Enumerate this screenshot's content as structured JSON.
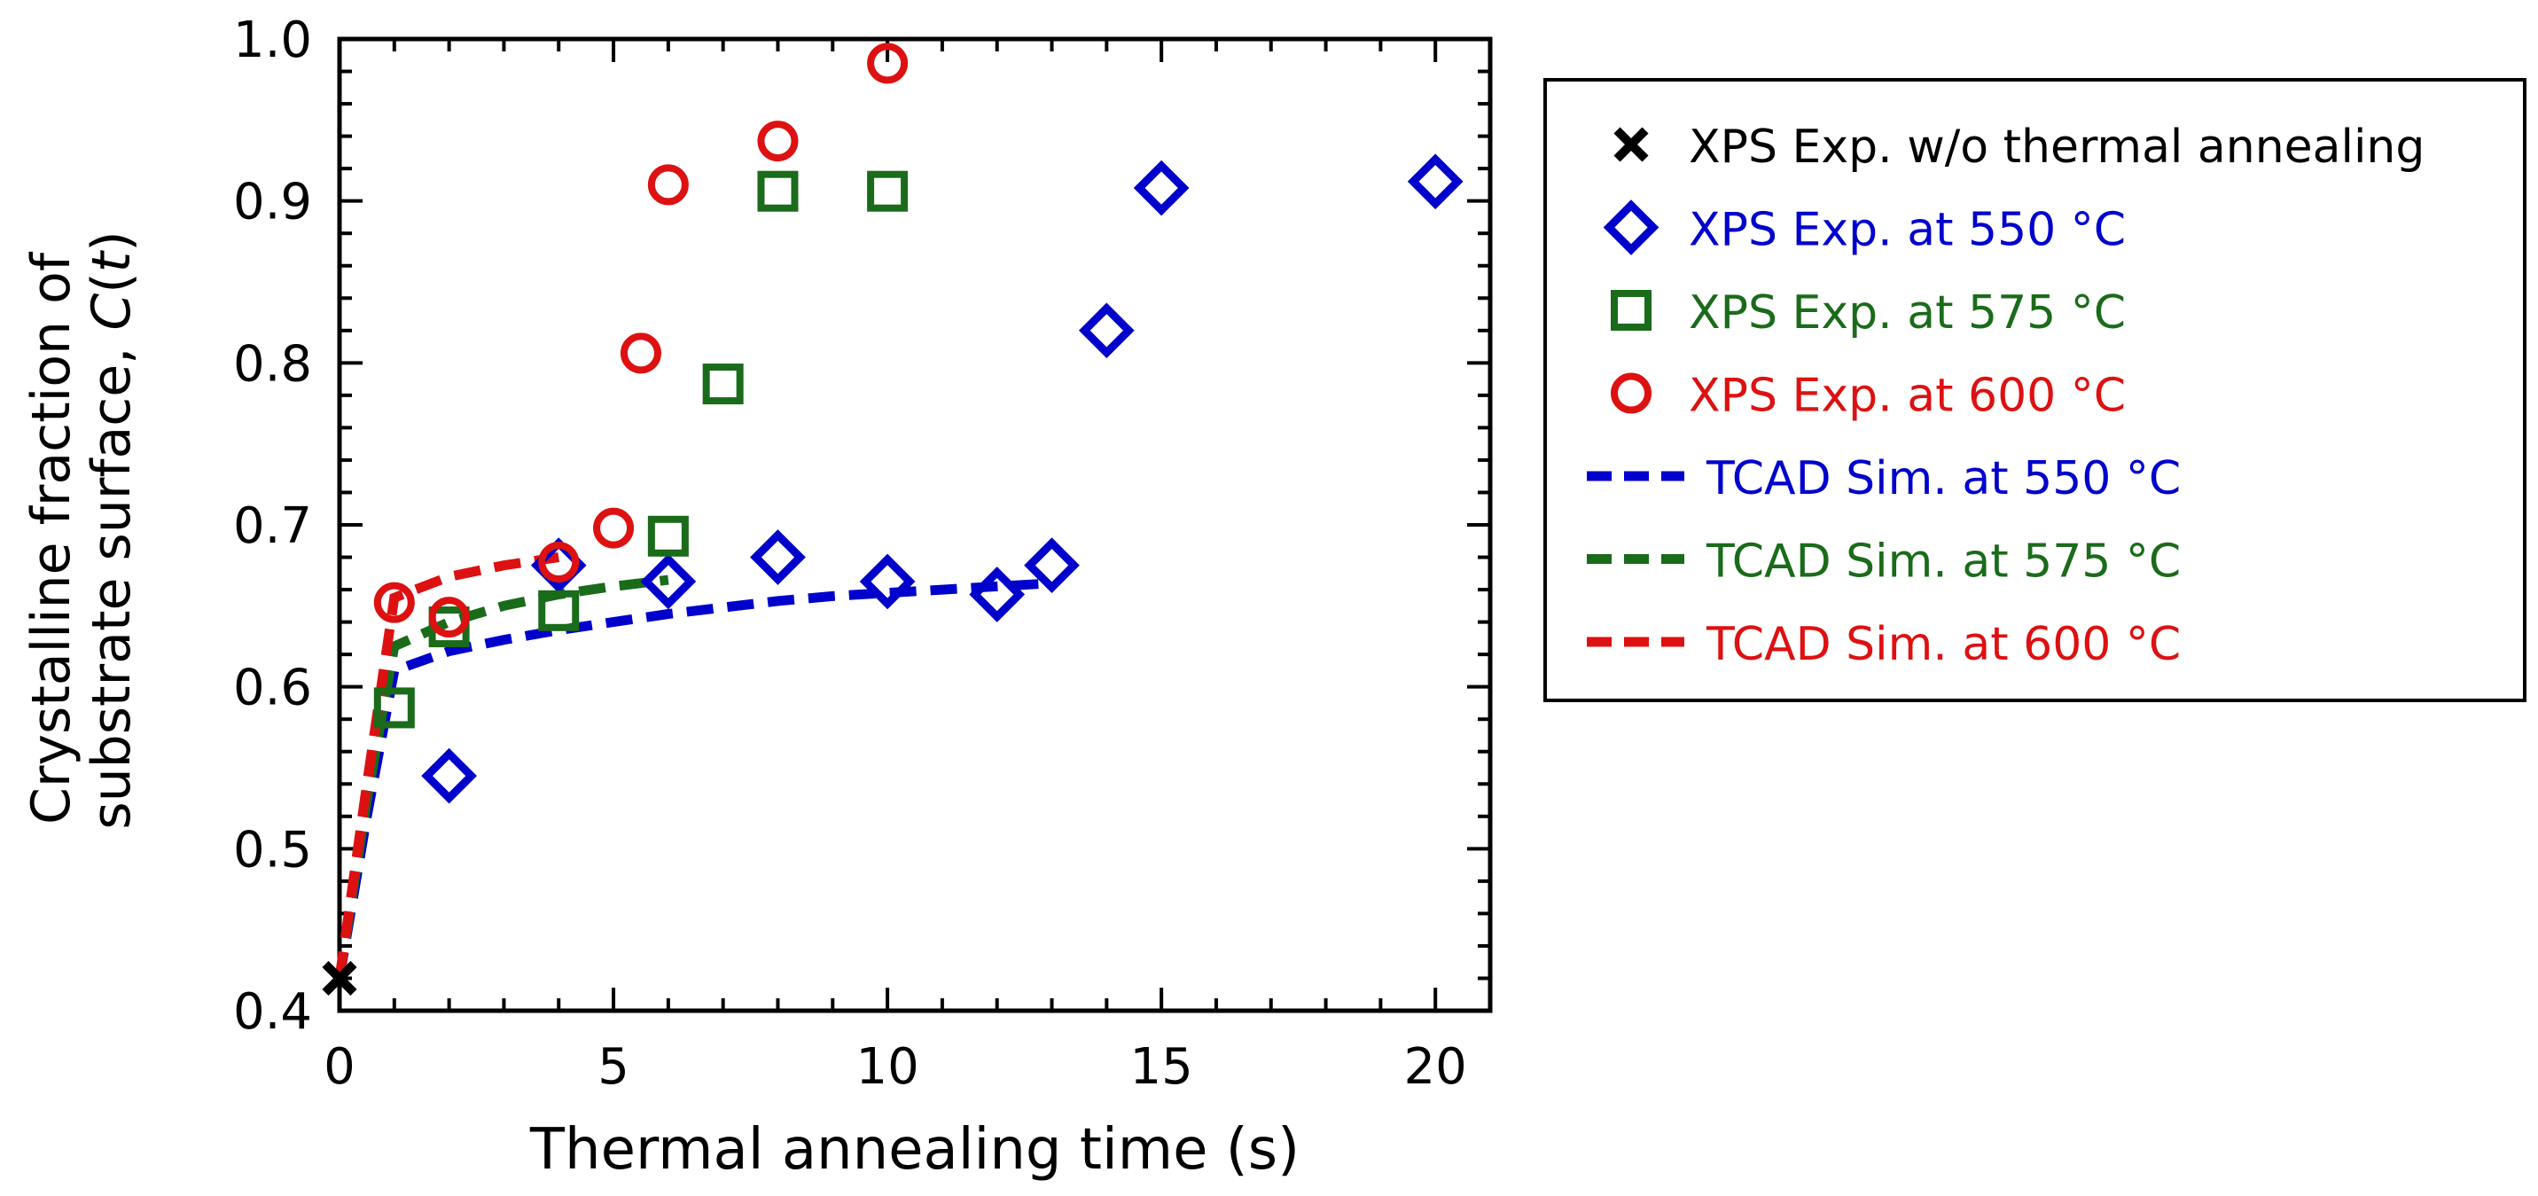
{
  "colors": {
    "black": "#000000",
    "blue": "#0000cc",
    "green": "#1a6b1a",
    "red": "#dd1111"
  },
  "chart_data": {
    "type": "scatter",
    "title": "",
    "xlabel": "Thermal annealing time (s)",
    "ylabel_line1": "Crystalline fraction of",
    "ylabel_line2_prefix": "substrate surface, ",
    "ylabel_line2_italic": "C",
    "ylabel_line2_open": "(",
    "ylabel_line2_var": "t",
    "ylabel_line2_close": ")",
    "xlim": [
      0,
      21
    ],
    "ylim": [
      0.4,
      1.0
    ],
    "x_ticks": [
      0,
      5,
      10,
      15,
      20
    ],
    "x_tick_labels": [
      "0",
      "5",
      "10",
      "15",
      "20"
    ],
    "y_ticks": [
      0.4,
      0.5,
      0.6,
      0.7,
      0.8,
      0.9,
      1.0
    ],
    "y_tick_labels": [
      "0.4",
      "0.5",
      "0.6",
      "0.7",
      "0.8",
      "0.9",
      "1.0"
    ],
    "legend_position": "right-outside",
    "series": [
      {
        "name": "XPS Exp. w/o thermal annealing",
        "kind": "marker",
        "marker": "x",
        "color": "#000000",
        "points": [
          [
            0,
            0.42
          ]
        ]
      },
      {
        "name": "XPS Exp. at 550 °C",
        "kind": "marker",
        "marker": "diamond",
        "color": "#0000cc",
        "points": [
          [
            2,
            0.545
          ],
          [
            4,
            0.675
          ],
          [
            6,
            0.665
          ],
          [
            8,
            0.68
          ],
          [
            10,
            0.665
          ],
          [
            12,
            0.657
          ],
          [
            13,
            0.675
          ],
          [
            14,
            0.82
          ],
          [
            15,
            0.908
          ],
          [
            20,
            0.912
          ]
        ]
      },
      {
        "name": "XPS Exp. at 575 °C",
        "kind": "marker",
        "marker": "square",
        "color": "#1a6b1a",
        "points": [
          [
            1,
            0.587
          ],
          [
            2,
            0.637
          ],
          [
            4,
            0.647
          ],
          [
            6,
            0.693
          ],
          [
            7,
            0.787
          ],
          [
            8,
            0.906
          ],
          [
            10,
            0.906
          ]
        ]
      },
      {
        "name": "XPS Exp. at 600 °C",
        "kind": "marker",
        "marker": "circle",
        "color": "#dd1111",
        "points": [
          [
            1,
            0.652
          ],
          [
            2,
            0.643
          ],
          [
            4,
            0.677
          ],
          [
            5,
            0.698
          ],
          [
            5.5,
            0.806
          ],
          [
            6,
            0.91
          ],
          [
            8,
            0.937
          ],
          [
            10,
            0.985
          ]
        ]
      },
      {
        "name": "TCAD Sim. at 550 °C",
        "kind": "line",
        "color": "#0000cc",
        "points": [
          [
            0,
            0.42
          ],
          [
            0.5,
            0.52
          ],
          [
            1,
            0.61
          ],
          [
            2,
            0.622
          ],
          [
            3,
            0.629
          ],
          [
            4,
            0.635
          ],
          [
            5,
            0.64
          ],
          [
            6,
            0.645
          ],
          [
            7,
            0.649
          ],
          [
            8,
            0.653
          ],
          [
            9,
            0.656
          ],
          [
            10,
            0.658
          ],
          [
            11,
            0.66
          ],
          [
            12,
            0.662
          ],
          [
            13,
            0.664
          ]
        ]
      },
      {
        "name": "TCAD Sim. at 575 °C",
        "kind": "line",
        "color": "#1a6b1a",
        "points": [
          [
            0,
            0.42
          ],
          [
            0.5,
            0.53
          ],
          [
            1,
            0.625
          ],
          [
            2,
            0.64
          ],
          [
            3,
            0.65
          ],
          [
            4,
            0.657
          ],
          [
            5,
            0.662
          ],
          [
            6,
            0.666
          ]
        ]
      },
      {
        "name": "TCAD Sim. at 600 °C",
        "kind": "line",
        "color": "#dd1111",
        "points": [
          [
            0,
            0.42
          ],
          [
            0.5,
            0.54
          ],
          [
            1,
            0.655
          ],
          [
            2,
            0.668
          ],
          [
            3,
            0.675
          ],
          [
            4,
            0.68
          ]
        ]
      }
    ]
  }
}
